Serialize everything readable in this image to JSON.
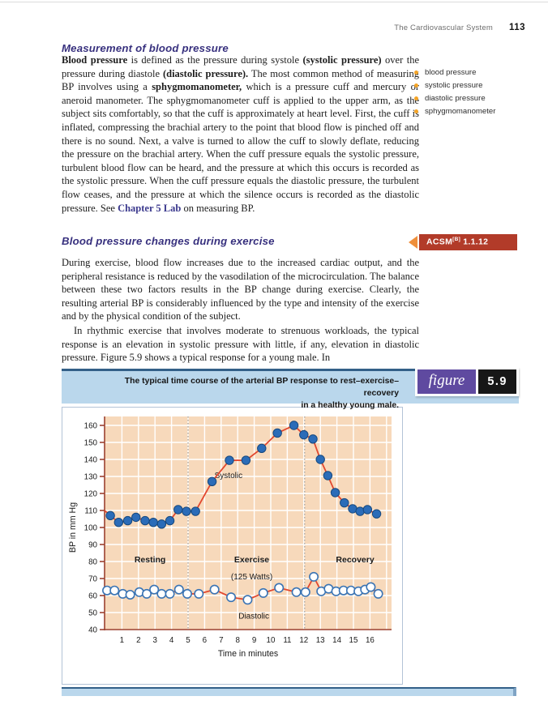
{
  "header": {
    "running_title": "The Cardiovascular System",
    "page_number": "113"
  },
  "margin_terms": [
    "blood pressure",
    "systolic pressure",
    "diastolic pressure",
    "sphygmomanometer"
  ],
  "measurement_section": {
    "heading": "Measurement of blood pressure",
    "paragraph": [
      {
        "t": "Blood pressure",
        "b": 1
      },
      {
        "t": " is defined as the pressure during systole "
      },
      {
        "t": "(systolic pressure)",
        "b": 1
      },
      {
        "t": " over the pressure during diastole "
      },
      {
        "t": "(diastolic pressure).",
        "b": 1
      },
      {
        "t": " The most common method of measuring BP involves using a "
      },
      {
        "t": "sphygmomanometer,",
        "b": 1
      },
      {
        "t": " which is a pressure cuff and mercury or aneroid manometer. The sphygmomanometer cuff is applied to the upper arm, as the subject sits comfortably, so that the cuff is approximately at heart level. First, the cuff is inflated, compressing the brachial artery to the point that blood flow is pinched off and there is no sound. Next, a valve is turned to allow the cuff to slowly deflate, reducing the pressure on the brachial artery. When the cuff pressure equals the systolic pressure, turbulent blood flow can be heard, and the pressure at which this occurs is recorded as the systolic pressure. When the cuff pressure equals the diastolic pressure, the turbulent flow ceases, and the pressure at which the silence occurs is recorded as the diastolic pressure. See "
      },
      {
        "t": "Chapter 5 Lab",
        "link": 1
      },
      {
        "t": " on measuring BP."
      }
    ]
  },
  "exercise_section": {
    "heading": "Blood pressure changes during exercise",
    "acsm": {
      "name": "ACSM",
      "sup": "[B]",
      "code": "1.1.12"
    },
    "paragraph1": "During exercise, blood flow increases due to the increased cardiac output, and the peripheral resistance is reduced by the vasodilation of the microcirculation. The balance between these two factors results in the BP change during exercise. Clearly, the resulting arterial BP is considerably influenced by the type and intensity of the exercise and by the physical condition of the subject.",
    "paragraph2": "In rhythmic exercise that involves moderate to strenuous workloads, the typical response is an elevation in systolic pressure with little, if any, elevation in diastolic pressure. Figure 5.9 shows a typical response for a young male. In"
  },
  "figure": {
    "label": "figure",
    "number": "5.9",
    "caption_line1": "The typical time course of the arterial BP response to rest–exercise–recovery",
    "caption_line2": "in a healthy young male."
  },
  "chart_data": {
    "type": "line",
    "title": "The typical time course of the arterial BP response to rest–exercise–recovery in a healthy young male.",
    "xlabel": "Time in minutes",
    "ylabel": "BP in mm Hg",
    "xlim": [
      0,
      17.3
    ],
    "ylim": [
      40,
      165
    ],
    "x_ticks": [
      1,
      2,
      3,
      4,
      5,
      6,
      7,
      8,
      9,
      10,
      11,
      12,
      13,
      14,
      15,
      16
    ],
    "x_gridlines": [
      1,
      2,
      3,
      4,
      5,
      6,
      7,
      8,
      9,
      10,
      11,
      12,
      13,
      14,
      15,
      16,
      17
    ],
    "y_ticks": [
      40,
      50,
      60,
      70,
      80,
      90,
      100,
      110,
      120,
      130,
      140,
      150,
      160
    ],
    "grid": true,
    "legend_position": "none",
    "phase_dividers_x": [
      5.0,
      12.05
    ],
    "annotations": [
      {
        "text": "Resting",
        "x": 2.7,
        "y": 79.5,
        "bold": true,
        "anchor": "middle"
      },
      {
        "text": "Exercise",
        "x": 8.85,
        "y": 79.5,
        "bold": true,
        "anchor": "middle"
      },
      {
        "text": "(125 Watts)",
        "x": 8.85,
        "y": 69.5,
        "bold": false,
        "anchor": "middle"
      },
      {
        "text": "Recovery",
        "x": 15.1,
        "y": 79.5,
        "bold": true,
        "anchor": "middle"
      },
      {
        "text": "Systolic",
        "x": 6.6,
        "y": 129.0,
        "bold": false,
        "anchor": "start"
      },
      {
        "text": "Diastolic",
        "x": 8.05,
        "y": 46.5,
        "bold": false,
        "anchor": "start"
      }
    ],
    "series": [
      {
        "name": "Systolic",
        "marker": "filled",
        "line_start": [
          -0.05,
          110
        ],
        "points": [
          [
            0.3,
            107
          ],
          [
            0.8,
            103
          ],
          [
            1.35,
            104
          ],
          [
            1.85,
            106
          ],
          [
            2.4,
            104
          ],
          [
            2.9,
            103
          ],
          [
            3.4,
            102
          ],
          [
            3.9,
            104
          ],
          [
            4.4,
            110.5
          ],
          [
            4.9,
            109.5
          ],
          [
            5.45,
            109.5
          ],
          [
            6.45,
            127
          ],
          [
            7.5,
            139.5
          ],
          [
            8.5,
            139.5
          ],
          [
            9.45,
            146.5
          ],
          [
            10.4,
            155.5
          ],
          [
            11.4,
            160
          ],
          [
            12.0,
            154.5
          ],
          [
            12.55,
            152
          ],
          [
            13.0,
            140
          ],
          [
            13.45,
            130.5
          ],
          [
            13.9,
            120.5
          ],
          [
            14.45,
            114.5
          ],
          [
            14.95,
            111
          ],
          [
            15.4,
            109.5
          ],
          [
            15.85,
            110.5
          ],
          [
            16.4,
            108
          ]
        ]
      },
      {
        "name": "Diastolic",
        "marker": "open",
        "points": [
          [
            0.1,
            63
          ],
          [
            0.55,
            63
          ],
          [
            1.05,
            61
          ],
          [
            1.5,
            60.5
          ],
          [
            2.05,
            62
          ],
          [
            2.5,
            61
          ],
          [
            2.95,
            63.5
          ],
          [
            3.4,
            61
          ],
          [
            3.9,
            61
          ],
          [
            4.45,
            63.5
          ],
          [
            4.95,
            61
          ],
          [
            5.65,
            61
          ],
          [
            6.6,
            63.5
          ],
          [
            7.6,
            59
          ],
          [
            8.6,
            57.5
          ],
          [
            9.55,
            61.5
          ],
          [
            10.5,
            64.5
          ],
          [
            11.55,
            62
          ],
          [
            12.1,
            62
          ],
          [
            12.6,
            71
          ],
          [
            13.05,
            62.5
          ],
          [
            13.5,
            64
          ],
          [
            13.95,
            62.5
          ],
          [
            14.4,
            63
          ],
          [
            14.85,
            63
          ],
          [
            15.3,
            62.5
          ],
          [
            15.7,
            63.5
          ],
          [
            16.05,
            65
          ],
          [
            16.5,
            61
          ]
        ]
      }
    ],
    "colors": {
      "line": "#e2482f",
      "marker_fill": "#2b6cb8",
      "marker_stroke": "#17497e",
      "open_marker_stroke": "#3a74b4",
      "plot_bg": "#f7d9bb",
      "grid": "#ffffff",
      "axis": "#9c4130",
      "divider": "#8a8a8a",
      "text": "#1a1a1a"
    }
  }
}
